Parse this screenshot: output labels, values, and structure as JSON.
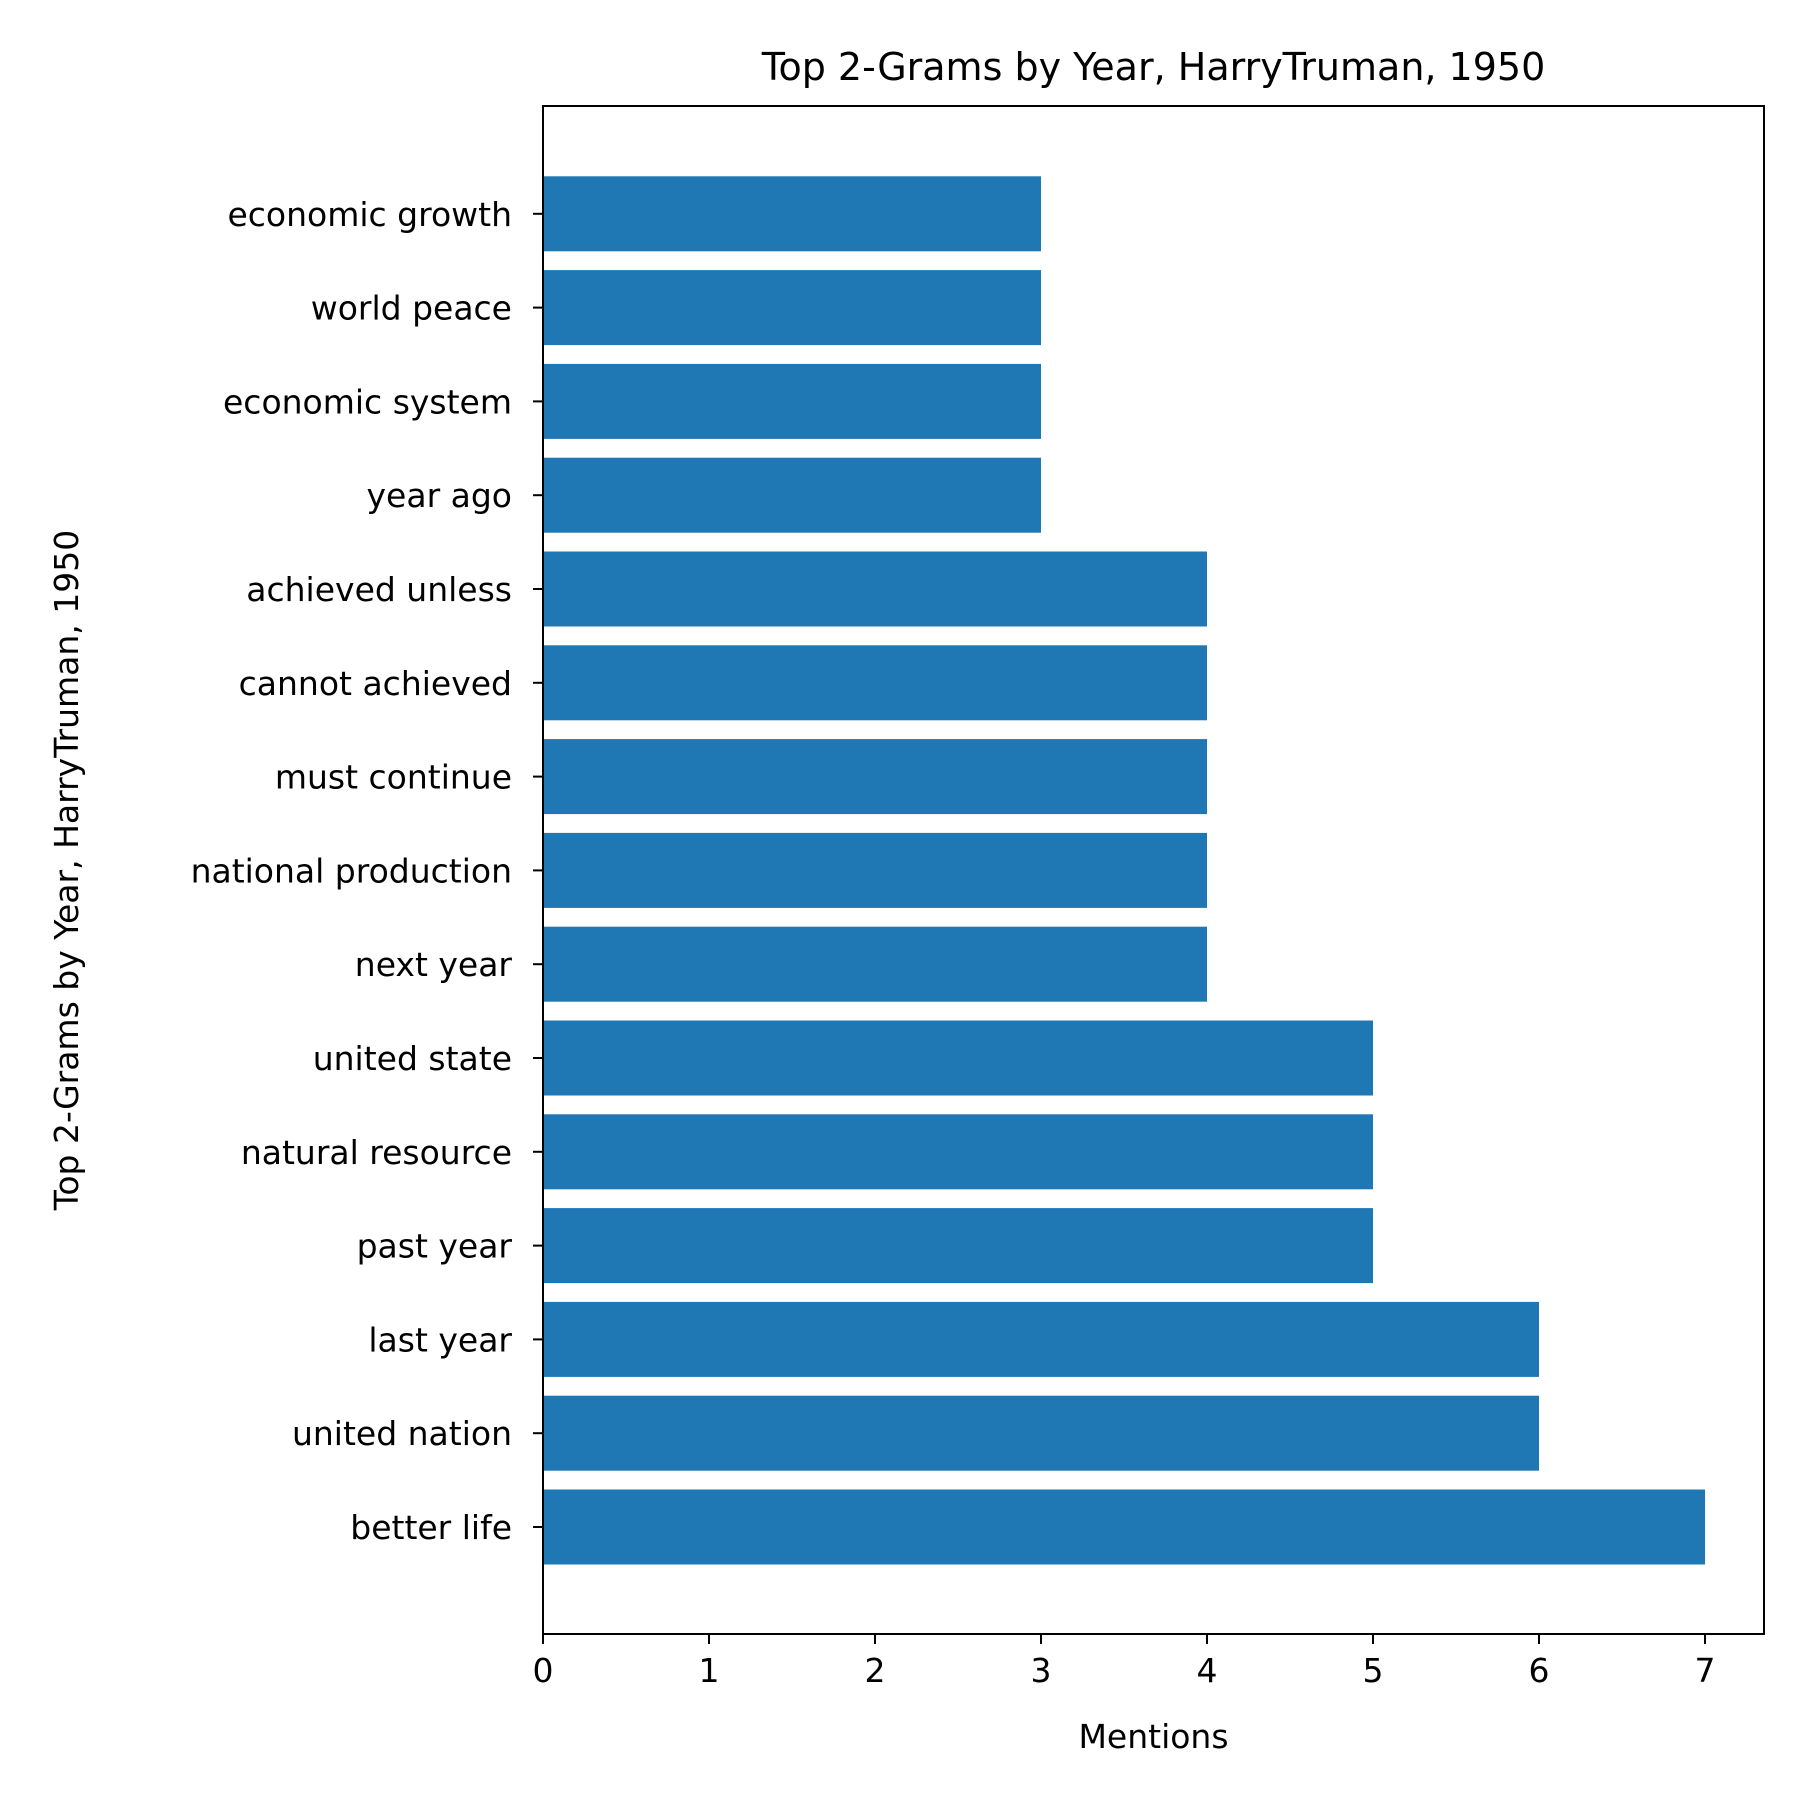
{
  "chart_data": {
    "type": "bar",
    "orientation": "horizontal",
    "title": "Top 2-Grams by Year, HarryTruman, 1950",
    "xlabel": "Mentions",
    "ylabel": "Top 2-Grams by Year, HarryTruman, 1950",
    "categories": [
      "better life",
      "united nation",
      "last year",
      "past year",
      "natural resource",
      "united state",
      "next year",
      "national production",
      "must continue",
      "cannot achieved",
      "achieved unless",
      "year ago",
      "economic system",
      "world peace",
      "economic growth"
    ],
    "values": [
      7,
      6,
      6,
      5,
      5,
      5,
      4,
      4,
      4,
      4,
      4,
      3,
      3,
      3,
      3
    ],
    "xlim": [
      0,
      7.35
    ],
    "xticks": [
      "0",
      "1",
      "2",
      "3",
      "4",
      "5",
      "6",
      "7"
    ],
    "bar_color": "#1f77b4",
    "grid": false,
    "legend": "none"
  }
}
